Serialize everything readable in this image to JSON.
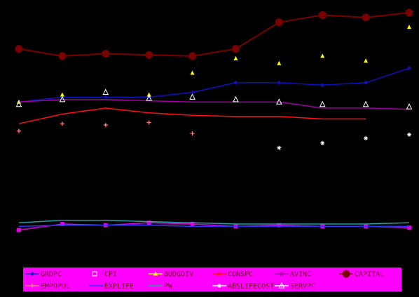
{
  "chart_data": {
    "type": "line",
    "title": "",
    "xlabel": "",
    "ylabel": "",
    "x": [
      1,
      2,
      3,
      4,
      5,
      6,
      7,
      8,
      9,
      10
    ],
    "xlim": [
      1,
      10
    ],
    "ylim": [
      0,
      100
    ],
    "grid": false,
    "legend_placement": "bottom",
    "series": [
      {
        "key": "grdpc",
        "name": "GRDPC",
        "color": "#1010c0",
        "style": "line",
        "marker": "diamond",
        "values": [
          63,
          65,
          65,
          65,
          67,
          71,
          71,
          70,
          71,
          77
        ]
      },
      {
        "key": "cpi",
        "name": "CPI",
        "color": "#e000e0",
        "style": "line",
        "marker": "square",
        "values": [
          10,
          12.5,
          12,
          13,
          12.5,
          11.5,
          12,
          11.5,
          11.5,
          11
        ]
      },
      {
        "key": "budgdiv",
        "name": "BUDGDIV",
        "color": "#ffff00",
        "style": "marker",
        "marker": "triangle",
        "values": [
          63,
          66,
          null,
          66,
          75,
          81,
          79,
          82,
          80,
          94
        ]
      },
      {
        "key": "conspc",
        "name": "CONSPC",
        "color": "#ff1010",
        "style": "line",
        "marker": "none",
        "values": [
          54,
          58,
          60.5,
          58.5,
          57.5,
          57,
          57,
          56,
          56,
          null
        ]
      },
      {
        "key": "avinc",
        "name": "AVINC",
        "color": "#a000a0",
        "style": "line",
        "marker": "none",
        "values": [
          63,
          64,
          64,
          63.5,
          63,
          63,
          63,
          60.5,
          60.5,
          60
        ]
      },
      {
        "key": "capital",
        "name": "CAPITAL",
        "color": "#7a0000",
        "style": "line",
        "marker": "circle",
        "values": [
          85,
          82,
          83,
          82.5,
          82,
          85,
          96,
          99,
          98,
          100
        ]
      },
      {
        "key": "empopul",
        "name": "EMPOPUL",
        "color": "#ff8080",
        "style": "marker",
        "marker": "plus",
        "values": [
          51,
          54,
          53.5,
          54.5,
          50,
          null,
          null,
          null,
          null,
          null
        ]
      },
      {
        "key": "explife",
        "name": "EXPLIFE",
        "color": "#3030ff",
        "style": "line",
        "marker": "none",
        "values": [
          11.5,
          12,
          12,
          12,
          11.5,
          11.5,
          11.5,
          11.5,
          11.5,
          11.5
        ]
      },
      {
        "key": "pw",
        "name": "PW",
        "color": "#20a0a0",
        "style": "line",
        "marker": "none",
        "values": [
          13,
          14,
          14,
          13.5,
          13,
          12.5,
          12.5,
          12.5,
          12.5,
          13
        ]
      },
      {
        "key": "abslifecost",
        "name": "ABSLIFECOST",
        "color": "#ffffff",
        "style": "marker",
        "marker": "star",
        "values": [
          null,
          null,
          null,
          null,
          null,
          null,
          44,
          46,
          48,
          49.5
        ]
      },
      {
        "key": "servpc",
        "name": "SERVPC",
        "color": "#ffffff",
        "style": "marker",
        "marker": "triangle-open",
        "values": [
          62,
          64,
          67,
          64.5,
          65,
          64,
          63,
          62,
          62,
          61
        ]
      }
    ],
    "legend_rows": [
      [
        "grdpc",
        "cpi",
        "budgdiv",
        "conspc",
        "avinc",
        "capital"
      ],
      [
        "empopul",
        "explife",
        "pw",
        "abslifecost",
        "servpc"
      ]
    ]
  }
}
